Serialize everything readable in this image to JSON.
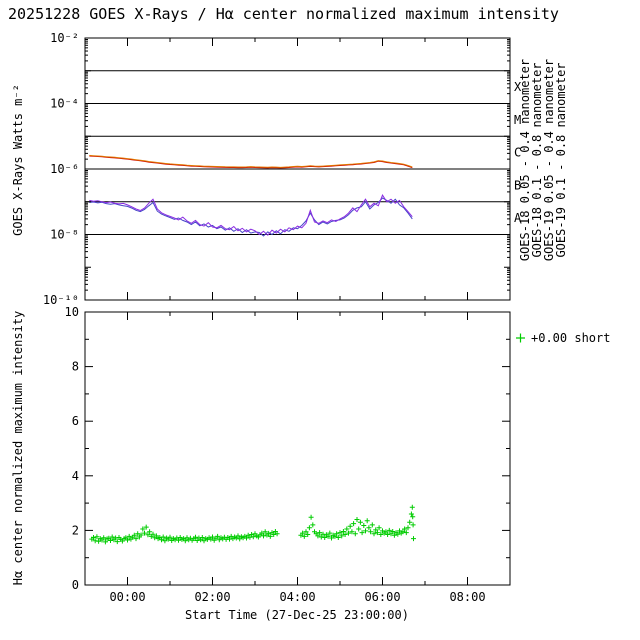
{
  "title": "20251228 GOES X-Rays / Hα center normalized maximum intensity",
  "colors": {
    "goes18_short": "#8A2BE2",
    "goes18_long": "#CC0000",
    "goes19_short": "#4646C8",
    "goes19_long": "#E07800",
    "halpha": "#00CC00",
    "axis": "#000000"
  },
  "xaxis": {
    "title": "Start Time (27-Dec-25 23:00:00)"
  },
  "chart_data": [
    {
      "type": "line",
      "title": "GOES X-Rays",
      "ylabel": "GOES X-Rays Watts m⁻²",
      "yscale": "log",
      "ylim": [
        1e-10,
        0.01
      ],
      "x_range": [
        -1,
        9
      ],
      "xtick_labels": [
        {
          "label": "00:00",
          "t": 0
        },
        {
          "label": "02:00",
          "t": 2
        },
        {
          "label": "04:00",
          "t": 4
        },
        {
          "label": "06:00",
          "t": 6
        },
        {
          "label": "08:00",
          "t": 8
        }
      ],
      "ytick_labels": [
        {
          "label": "10⁻²",
          "exp": -2
        },
        {
          "label": "10⁻⁴",
          "exp": -4
        },
        {
          "label": "10⁻⁶",
          "exp": -6
        },
        {
          "label": "10⁻⁸",
          "exp": -8
        },
        {
          "label": "10⁻¹⁰",
          "exp": -10
        }
      ],
      "decade_lines_exp": [
        -3,
        -4,
        -5,
        -6,
        -7,
        -8
      ],
      "class_bands": [
        {
          "label": "X",
          "center_exp": -3.5
        },
        {
          "label": "M",
          "center_exp": -4.5
        },
        {
          "label": "C",
          "center_exp": -5.5
        },
        {
          "label": "B",
          "center_exp": -6.5
        },
        {
          "label": "A",
          "center_exp": -7.5
        }
      ],
      "legend_vertical": [
        {
          "text": "GOES-18 0.05 - 0.4 nanometer",
          "color_key": "goes18_short"
        },
        {
          "text": "GOES-18 0.1 - 0.8 nanometer",
          "color_key": "goes18_long"
        },
        {
          "text": "GOES-19 0.05 - 0.4 nanometer",
          "color_key": "goes19_short"
        },
        {
          "text": "GOES-19 0.1 - 0.8 nanometer",
          "color_key": "goes19_long"
        }
      ],
      "series": [
        {
          "name": "GOES-18 0.1 - 0.8 nanometer",
          "color_key": "goes18_long",
          "scale": 1e-06,
          "segments": [
            {
              "t0": -0.9,
              "dt": 0.1,
              "v": [
                2.5,
                2.45,
                2.4,
                2.35,
                2.29,
                2.23,
                2.19,
                2.13,
                2.06,
                2.0,
                1.92,
                1.84,
                1.78,
                1.71,
                1.63,
                1.57,
                1.52,
                1.46,
                1.41,
                1.37,
                1.34,
                1.32,
                1.29,
                1.26,
                1.23,
                1.21,
                1.19,
                1.17,
                1.16,
                1.15,
                1.14,
                1.13,
                1.12,
                1.11,
                1.11,
                1.1,
                1.1,
                1.11,
                1.13,
                1.11,
                1.1,
                1.09,
                1.08,
                1.1,
                1.09,
                1.08,
                1.09,
                1.11,
                1.14,
                1.16,
                1.14,
                1.17,
                1.2,
                1.18,
                1.16,
                1.18,
                1.2,
                1.23,
                1.26,
                1.28,
                1.31,
                1.33,
                1.35,
                1.39,
                1.42,
                1.47,
                1.52,
                1.58,
                1.73,
                1.68,
                1.58,
                1.52,
                1.46,
                1.41,
                1.34,
                1.23,
                1.1
              ]
            }
          ]
        },
        {
          "name": "GOES-19 0.1 - 0.8 nanometer",
          "color_key": "goes19_long",
          "scale": 1e-06,
          "segments": [
            {
              "t0": -0.9,
              "dt": 0.1,
              "v": [
                2.6,
                2.55,
                2.5,
                2.45,
                2.38,
                2.32,
                2.28,
                2.22,
                2.15,
                2.08,
                2.0,
                1.92,
                1.85,
                1.78,
                1.7,
                1.64,
                1.58,
                1.52,
                1.47,
                1.43,
                1.4,
                1.37,
                1.34,
                1.31,
                1.28,
                1.26,
                1.24,
                1.22,
                1.21,
                1.2,
                1.19,
                1.18,
                1.17,
                1.16,
                1.16,
                1.15,
                1.15,
                1.16,
                1.18,
                1.16,
                1.15,
                1.14,
                1.13,
                1.15,
                1.14,
                1.12,
                1.14,
                1.16,
                1.19,
                1.21,
                1.19,
                1.22,
                1.25,
                1.23,
                1.21,
                1.23,
                1.25,
                1.28,
                1.31,
                1.33,
                1.36,
                1.38,
                1.41,
                1.45,
                1.48,
                1.53,
                1.58,
                1.65,
                1.8,
                1.75,
                1.65,
                1.58,
                1.52,
                1.47,
                1.4,
                1.28,
                1.15
              ]
            }
          ]
        },
        {
          "name": "GOES-19 0.05 - 0.4 nanometer",
          "color_key": "goes19_short",
          "scale": 1e-08,
          "segments": [
            {
              "t0": -0.9,
              "dt": 0.1,
              "v": [
                9.5,
                9.8,
                9.2,
                9.6,
                8.8,
                8.4,
                8.8,
                8.0,
                7.6,
                7.2,
                6.4,
                5.5,
                5.0,
                5.8,
                7.5,
                9.5,
                5.2,
                4.2,
                3.7,
                3.3,
                2.9,
                3.2,
                2.7,
                2.4,
                2.0,
                2.4,
                1.85,
                2.1,
                1.7,
                1.9,
                1.5,
                1.7,
                1.35,
                1.6,
                1.25,
                1.5,
                1.15,
                1.4,
                1.1,
                1.2,
                1.15,
                0.9,
                1.2,
                1.0,
                1.3,
                1.05,
                1.4,
                1.25,
                1.6,
                1.5,
                1.9,
                2.6,
                4.5,
                2.8,
                2.0,
                2.4,
                2.1,
                2.5,
                2.7,
                2.8,
                3.2,
                4.0,
                5.5,
                6.5,
                7.0,
                10.0,
                6.0,
                8.0,
                9.5,
                13.0,
                11.0,
                9.0,
                12.0,
                8.0,
                6.5,
                4.5,
                3.0
              ]
            }
          ]
        },
        {
          "name": "GOES-18 0.05 - 0.4 nanometer",
          "color_key": "goes18_short",
          "scale": 1e-08,
          "segments": [
            {
              "t0": -0.9,
              "dt": 0.1,
              "v": [
                11.0,
                10.4,
                10.8,
                10.0,
                9.4,
                9.8,
                9.0,
                8.6,
                8.9,
                8.0,
                7.0,
                6.0,
                5.4,
                6.4,
                9.0,
                12.0,
                6.0,
                4.6,
                4.0,
                3.6,
                3.2,
                2.8,
                3.4,
                2.6,
                2.2,
                2.7,
                2.0,
                1.8,
                2.3,
                1.7,
                1.6,
                1.9,
                1.5,
                1.4,
                1.75,
                1.3,
                1.55,
                1.2,
                1.45,
                1.3,
                1.0,
                1.25,
                0.95,
                1.35,
                1.1,
                1.45,
                1.2,
                1.6,
                1.4,
                1.8,
                1.6,
                2.2,
                5.5,
                2.4,
                2.2,
                2.6,
                2.3,
                2.8,
                2.5,
                3.0,
                3.5,
                4.5,
                6.5,
                5.0,
                8.0,
                12.0,
                7.0,
                9.0,
                7.5,
                16.0,
                10.0,
                12.0,
                9.0,
                11.0,
                7.0,
                5.0,
                3.5
              ]
            }
          ]
        }
      ]
    },
    {
      "type": "scatter",
      "ylabel": "Hα center normalized maximum intensity",
      "ylim": [
        0,
        10
      ],
      "yticks": [
        0,
        2,
        4,
        6,
        8,
        10
      ],
      "legend": {
        "marker": "+",
        "text": "+0.00 short"
      },
      "series": [
        {
          "name": "Halpha center normalized maximum intensity",
          "color_key": "halpha",
          "scale": 1,
          "segments": [
            {
              "t0": -0.84,
              "dt": 0.04,
              "v": [
                1.68,
                1.74,
                1.62,
                1.77,
                1.6,
                1.7,
                1.65,
                1.73,
                1.58,
                1.69,
                1.71,
                1.63,
                1.76,
                1.66,
                1.72,
                1.59,
                1.74,
                1.67,
                1.61,
                1.7,
                1.73,
                1.65,
                1.78,
                1.68,
                1.75,
                1.82,
                1.7,
                1.88,
                1.76,
                1.83,
                2.05,
                1.9,
                2.12,
                1.84,
                1.95,
                1.78,
                1.86,
                1.73,
                1.8,
                1.7,
                1.74,
                1.66,
                1.76,
                1.62,
                1.72,
                1.68,
                1.75,
                1.63,
                1.7,
                1.66,
                1.72,
                1.64,
                1.74,
                1.67,
                1.7,
                1.62,
                1.73,
                1.66,
                1.71,
                1.64,
                1.7,
                1.75,
                1.63,
                1.72,
                1.66,
                1.74,
                1.62,
                1.7,
                1.67,
                1.73,
                1.68,
                1.76,
                1.64,
                1.71,
                1.78,
                1.66,
                1.73,
                1.69,
                1.75,
                1.67,
                1.74,
                1.68,
                1.78,
                1.7,
                1.76,
                1.72,
                1.8,
                1.69,
                1.77,
                1.73,
                1.78,
                1.72,
                1.82,
                1.75,
                1.85,
                1.77,
                1.88,
                1.8,
                1.76,
                1.84,
                1.9,
                1.8,
                1.95,
                1.83,
                1.89,
                1.78,
                1.92,
                1.85,
                1.96,
                1.88
              ]
            },
            {
              "t0": 4.08,
              "dt": 0.04,
              "v": [
                1.82,
                1.9,
                1.78,
                1.95,
                1.85,
                2.1,
                2.48,
                2.2,
                1.95,
                1.88,
                1.8,
                1.92,
                1.76,
                1.86,
                1.74,
                1.84,
                1.78,
                1.9,
                1.72,
                1.82,
                1.78,
                1.88,
                1.74,
                1.92,
                1.8,
                1.96,
                1.85,
                2.05,
                1.9,
                2.15,
                1.95,
                2.25,
                1.88,
                2.4,
                2.05,
                2.3,
                1.92,
                2.18,
                1.98,
                2.35,
                2.1,
                1.95,
                2.2,
                1.88,
                2.02,
                1.92,
                2.1,
                1.85,
                1.98,
                1.9,
                1.95,
                1.85,
                2.0,
                1.88,
                1.96,
                1.82,
                1.92,
                1.86,
                1.98,
                1.9,
                1.95,
                2.05,
                1.92,
                2.1,
                2.3,
                2.6
              ]
            },
            {
              "t": [
                6.7,
                6.71,
                6.72,
                6.73
              ],
              "v": [
                2.85,
                2.5,
                2.2,
                1.7
              ]
            }
          ]
        }
      ]
    }
  ]
}
